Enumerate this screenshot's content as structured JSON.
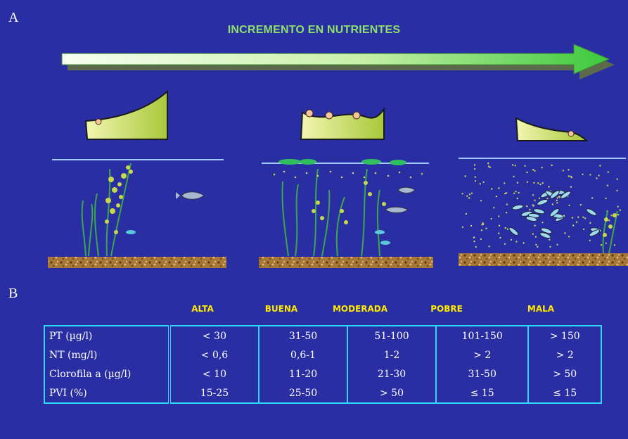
{
  "panel_a_label": "A",
  "panel_b_label": "B",
  "title": "INCREMENTO EN NUTRIENTES",
  "classes": [
    "ALTA",
    "BUENA",
    "MODERADA",
    "POBRE",
    "MALA"
  ],
  "rows": [
    {
      "name": "PT (µg/l)",
      "values": [
        "< 30",
        "31-50",
        "51-100",
        "101-150",
        "> 150"
      ]
    },
    {
      "name": "NT (mg/l)",
      "values": [
        "< 0,6",
        "0,6-1",
        "1-2",
        "> 2",
        "> 2"
      ]
    },
    {
      "name": "Clorofila a (µg/l)",
      "values": [
        "< 10",
        "11-20",
        "21-30",
        "31-50",
        "> 50"
      ]
    },
    {
      "name": "PVI (%)",
      "values": [
        "15-25",
        "25-50",
        "> 50",
        "≤ 15",
        "≤ 15"
      ]
    }
  ],
  "colors": {
    "background": "#2a2ea3",
    "arrow": "#7ee05c",
    "title": "#8fe06a",
    "class_labels": "#ffe800",
    "table_border": "#2fd6ff",
    "sediment": "#b88a4a",
    "vegetation": "#c8d84a"
  }
}
